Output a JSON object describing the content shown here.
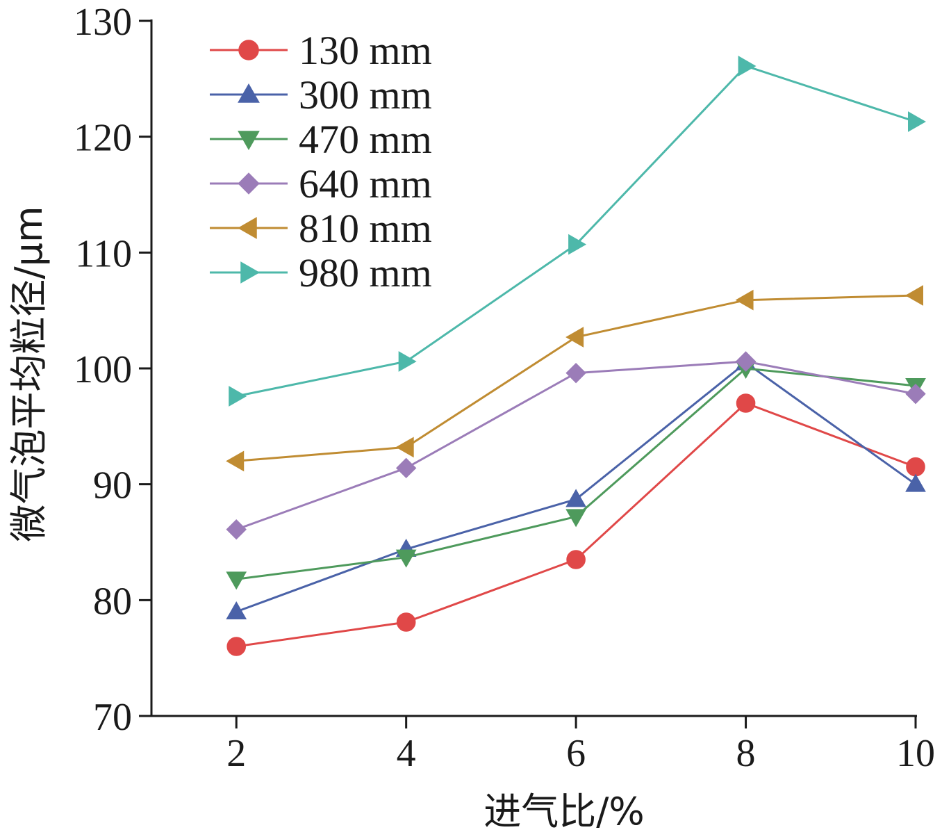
{
  "chart_data": {
    "type": "line",
    "title": "",
    "xlabel": "进气比/%",
    "ylabel": "微气泡平均粒径/μm",
    "x": [
      2,
      4,
      6,
      8,
      10
    ],
    "x_ticks": [
      "2",
      "4",
      "6",
      "8",
      "10"
    ],
    "xlim": [
      1,
      10
    ],
    "y_ticks": [
      "70",
      "80",
      "90",
      "100",
      "110",
      "120",
      "130"
    ],
    "ylim": [
      70,
      130
    ],
    "grid": false,
    "legend_position": "top-left",
    "series": [
      {
        "name": "130 mm",
        "marker": "circle",
        "color": "#e04848",
        "values": [
          76.0,
          78.1,
          83.5,
          97.0,
          91.5
        ]
      },
      {
        "name": "300 mm",
        "marker": "triangle-up",
        "color": "#4a62a8",
        "values": [
          79.0,
          84.4,
          88.7,
          100.5,
          90.0
        ]
      },
      {
        "name": "470 mm",
        "marker": "triangle-down",
        "color": "#4e9a5c",
        "values": [
          81.8,
          83.7,
          87.2,
          100.0,
          98.5
        ]
      },
      {
        "name": "640 mm",
        "marker": "diamond",
        "color": "#9b7cb8",
        "values": [
          86.1,
          91.4,
          99.6,
          100.6,
          97.8
        ]
      },
      {
        "name": "810 mm",
        "marker": "triangle-left",
        "color": "#c08c32",
        "values": [
          92.0,
          93.2,
          102.7,
          105.9,
          106.3
        ]
      },
      {
        "name": "980 mm",
        "marker": "triangle-right",
        "color": "#4db8aa",
        "values": [
          97.6,
          100.6,
          110.7,
          126.1,
          121.3
        ]
      }
    ]
  }
}
